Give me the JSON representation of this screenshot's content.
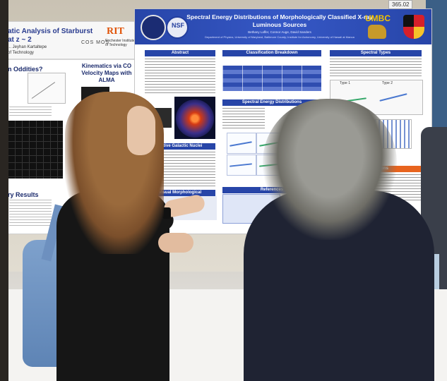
{
  "poster_left": {
    "title_line1": "atic Analysis of Starburst",
    "title_line2": "at z ~ 2",
    "authors": "... Jeyhan Kartaltepe",
    "institution": "of Technology",
    "rit_logo": "RIT",
    "rit_subtitle": "Rochester Institute of Technology",
    "cosmos_logo": "COS MOS",
    "section_oddities": "n Oddities?",
    "section_kinematics": "Kinematics via CO Velocity Maps with ALMA",
    "section_results": "ry Results"
  },
  "poster_main": {
    "title_line1": "Spectral Energy Distributions of Morphologically Classified X-ray",
    "title_line2": "Luminous Sources",
    "authors": "Bethany Laffer, Connor Auge, David Sanders",
    "affiliation": "Department of Physics, University of Maryland, Baltimore County; Institute for Astronomy, University of Hawaii at Manoa",
    "umbc_logo": "UMBC",
    "nsf_logo": "NSF",
    "section_abstract": "Abstract",
    "section_classification": "Classification Breakdown",
    "section_spectral_types": "Spectral Types",
    "section_active_galactic": "Active Galactic Nuclei",
    "section_spectral_energy": "Spectral Energy Distributions",
    "section_visual": "Visual Morphological Classification",
    "section_conclusions": "Conclusions",
    "section_references": "References",
    "type1_label": "Type 1",
    "type2_label": "Type 2"
  },
  "board_tag": "365.02"
}
